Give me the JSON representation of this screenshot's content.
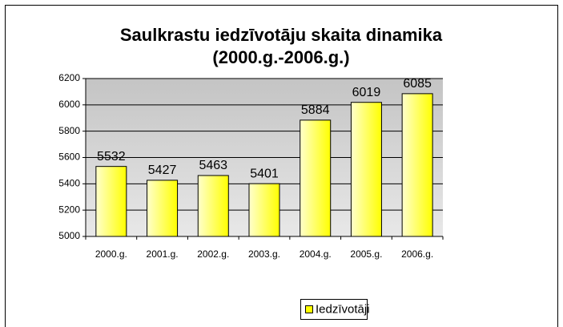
{
  "chart_data": {
    "type": "bar",
    "title": [
      "Saulkrastu iedzīvotāju skaita dinamika",
      "(2000.g.-2006.g.)"
    ],
    "categories": [
      "2000.g.",
      "2001.g.",
      "2002.g.",
      "2003.g.",
      "2004.g.",
      "2005.g.",
      "2006.g."
    ],
    "series": [
      {
        "name": "Iedzīvotāji",
        "color": "#ffff00",
        "values": [
          5532,
          5427,
          5463,
          5401,
          5884,
          6019,
          6085
        ]
      }
    ],
    "ylim": [
      5000,
      6200
    ],
    "yticks": [
      5000,
      5200,
      5400,
      5600,
      5800,
      6000,
      6200
    ],
    "grid": true,
    "legend": "bottom"
  }
}
